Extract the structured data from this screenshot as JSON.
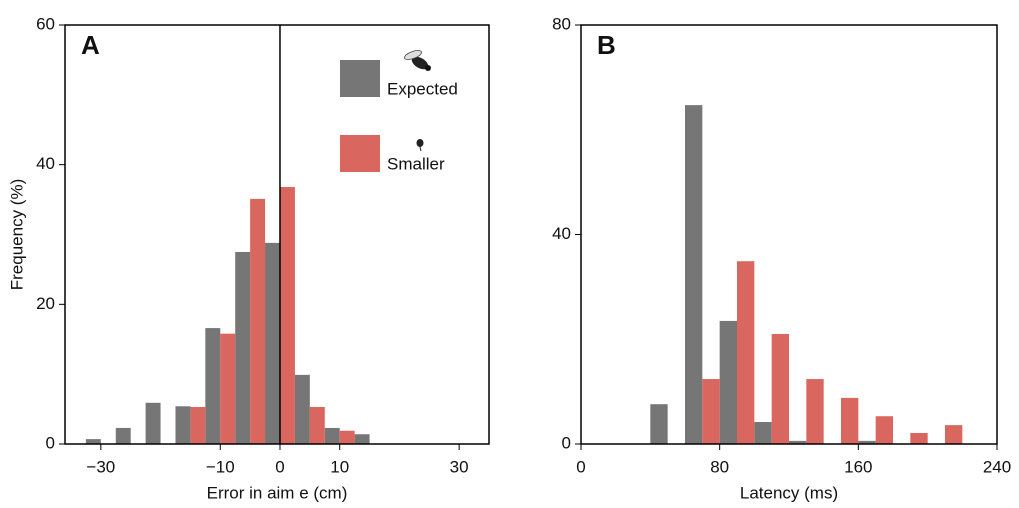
{
  "chart_data": [
    {
      "type": "histogram",
      "panel": "A",
      "x_label": "Error in aim e (cm)",
      "y_label": "Frequency (%)",
      "bins": [
        -32.5,
        -27.5,
        -22.5,
        -17.5,
        -12.5,
        -7.5,
        -2.5,
        2.5,
        7.5,
        12.5,
        17.5
      ],
      "series": [
        {
          "name": "Expected",
          "color": "#767676",
          "values": [
            0.7,
            2.3,
            5.9,
            5.4,
            16.6,
            27.5,
            28.8,
            9.9,
            2.3,
            1.4
          ]
        },
        {
          "name": "Smaller",
          "color": "#d9665f",
          "values": [
            0,
            0,
            0,
            5.3,
            15.8,
            35.1,
            36.8,
            5.3,
            1.9,
            0
          ]
        }
      ],
      "xlim": [
        -36,
        35
      ],
      "xticks": [
        {
          "value": -30,
          "label": "−30"
        },
        {
          "value": -10,
          "label": "−10"
        },
        0,
        10,
        30
      ],
      "ylim": [
        0,
        60
      ],
      "yticks": [
        0,
        20,
        40,
        60
      ],
      "vline": 0,
      "legend": "top-right"
    },
    {
      "type": "histogram",
      "panel": "B",
      "x_label": "Latency (ms)",
      "bins": [
        40,
        60,
        80,
        100,
        120,
        140,
        160,
        180,
        200,
        220
      ],
      "series": [
        {
          "color": "#767676",
          "values": [
            7.6,
            64.7,
            23.5,
            4.2,
            0.6,
            0,
            0.6,
            0,
            0
          ]
        },
        {
          "color": "#d9665f",
          "values": [
            0,
            12.4,
            34.9,
            21.0,
            12.4,
            8.8,
            5.3,
            2.1,
            3.6
          ]
        }
      ],
      "xlim": [
        0,
        240
      ],
      "xticks": [
        0,
        80,
        160,
        240
      ],
      "ylim": [
        0,
        80
      ],
      "yticks": [
        0,
        40,
        80
      ]
    }
  ]
}
